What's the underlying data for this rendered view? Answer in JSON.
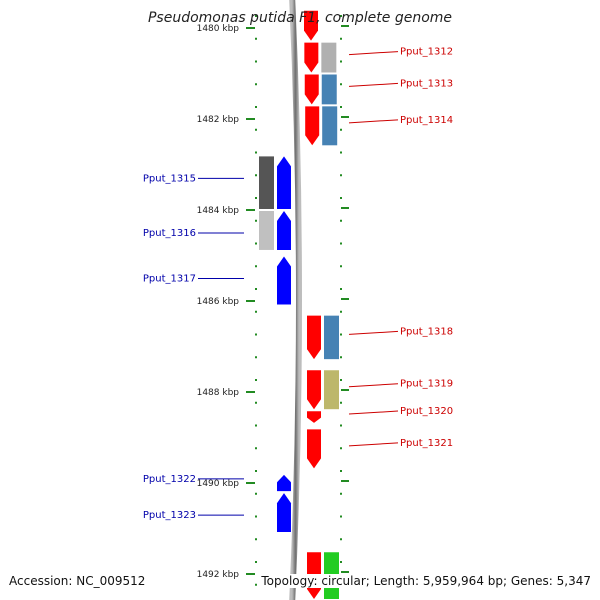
{
  "title": "Pseudomonas putida F1, complete genome",
  "footer": {
    "accession": "Accession: NC_009512",
    "summary": "Topology: circular; Length: 5,959,964 bp; Genes: 5,347"
  },
  "ruler": [
    {
      "label": "1480 kbp",
      "pos": 1480
    },
    {
      "label": "1482 kbp",
      "pos": 1482
    },
    {
      "label": "1484 kbp",
      "pos": 1484
    },
    {
      "label": "1486 kbp",
      "pos": 1486
    },
    {
      "label": "1488 kbp",
      "pos": 1488
    },
    {
      "label": "1490 kbp",
      "pos": 1490
    },
    {
      "label": "1492 kbp",
      "pos": 1492
    }
  ],
  "colors": {
    "forward_gene": "#ff0000",
    "reverse_gene": "#0000ff",
    "forward_label": "#cc0000",
    "reverse_label": "#0000aa",
    "backbone": "#808080",
    "ticks": "#228b22",
    "cog_blue": "#4682b4",
    "cog_khaki": "#bdb76b",
    "cog_gray": "#b0b0b0",
    "cog_dark": "#555555",
    "cog_light": "#c0c0c0",
    "cog_green": "#22cc22"
  },
  "genes": [
    {
      "label": "",
      "strand": "+",
      "start": 1479.6,
      "end": 1480.3,
      "cog": "",
      "cog_color": ""
    },
    {
      "label": "Pput_1312",
      "strand": "+",
      "start": 1480.3,
      "end": 1481.0,
      "cog": "gray",
      "cog_color": "#b0b0b0"
    },
    {
      "label": "Pput_1313",
      "strand": "+",
      "start": 1481.0,
      "end": 1481.7,
      "cog": "blue",
      "cog_color": "#4682b4"
    },
    {
      "label": "Pput_1314",
      "strand": "+",
      "start": 1481.7,
      "end": 1482.6,
      "cog": "blue",
      "cog_color": "#4682b4"
    },
    {
      "label": "Pput_1315",
      "strand": "-",
      "start": 1482.8,
      "end": 1484.0,
      "cog": "dark",
      "cog_color": "#555555"
    },
    {
      "label": "Pput_1316",
      "strand": "-",
      "start": 1484.0,
      "end": 1484.9,
      "cog": "light",
      "cog_color": "#c0c0c0"
    },
    {
      "label": "Pput_1317",
      "strand": "-",
      "start": 1485.0,
      "end": 1486.1,
      "cog": "",
      "cog_color": ""
    },
    {
      "label": "Pput_1318",
      "strand": "+",
      "start": 1486.3,
      "end": 1487.3,
      "cog": "blue",
      "cog_color": "#4682b4"
    },
    {
      "label": "Pput_1319",
      "strand": "+",
      "start": 1487.5,
      "end": 1488.4,
      "cog": "khaki",
      "cog_color": "#bdb76b"
    },
    {
      "label": "Pput_1320",
      "strand": "+",
      "start": 1488.4,
      "end": 1488.7,
      "cog": "",
      "cog_color": ""
    },
    {
      "label": "Pput_1321",
      "strand": "+",
      "start": 1488.8,
      "end": 1489.7,
      "cog": "",
      "cog_color": ""
    },
    {
      "label": "Pput_1322",
      "strand": "-",
      "start": 1489.8,
      "end": 1490.2,
      "cog": "",
      "cog_color": ""
    },
    {
      "label": "Pput_1323",
      "strand": "-",
      "start": 1490.2,
      "end": 1491.1,
      "cog": "",
      "cog_color": ""
    },
    {
      "label": "",
      "strand": "+",
      "start": 1491.5,
      "end": 1492.8,
      "cog": "green",
      "cog_color": "#22cc22"
    }
  ]
}
